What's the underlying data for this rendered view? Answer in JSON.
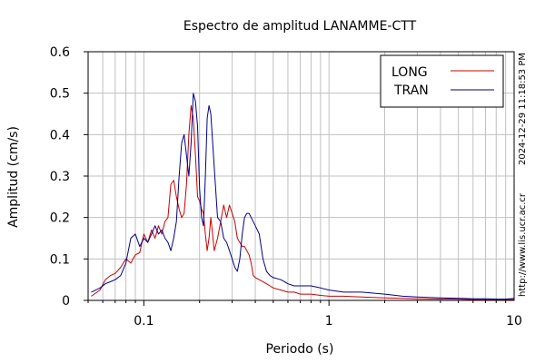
{
  "chart_data": {
    "type": "line",
    "title": "Espectro de amplitud LANAMME-CTT",
    "xlabel": "Periodo (s)",
    "ylabel": "Amplitud (cm/s)",
    "x_scale": "log",
    "xlim": [
      0.05,
      10
    ],
    "ylim": [
      0,
      0.6
    ],
    "x_ticks": [
      0.1,
      1,
      10
    ],
    "x_tick_labels": [
      "0.1",
      "1",
      "10"
    ],
    "y_ticks": [
      0,
      0.1,
      0.2,
      0.3,
      0.4,
      0.5,
      0.6
    ],
    "y_tick_labels": [
      "0",
      "0.1",
      "0.2",
      "0.3",
      "0.4",
      "0.5",
      "0.6"
    ],
    "grid": true,
    "legend_position": "top-right",
    "timestamp": "2024-12-29 11:18:53 PM",
    "source_url": "http://www.lis.ucr.ac.cr",
    "series": [
      {
        "name": "LONG",
        "color": "#cc0000",
        "x": [
          0.052,
          0.058,
          0.062,
          0.066,
          0.07,
          0.075,
          0.08,
          0.085,
          0.09,
          0.095,
          0.1,
          0.105,
          0.11,
          0.115,
          0.12,
          0.125,
          0.13,
          0.135,
          0.14,
          0.145,
          0.15,
          0.155,
          0.16,
          0.165,
          0.17,
          0.175,
          0.18,
          0.185,
          0.19,
          0.195,
          0.2,
          0.205,
          0.21,
          0.215,
          0.22,
          0.225,
          0.23,
          0.24,
          0.25,
          0.26,
          0.27,
          0.28,
          0.29,
          0.3,
          0.31,
          0.32,
          0.33,
          0.34,
          0.35,
          0.36,
          0.37,
          0.38,
          0.39,
          0.4,
          0.42,
          0.44,
          0.46,
          0.48,
          0.5,
          0.55,
          0.6,
          0.65,
          0.7,
          0.8,
          0.9,
          1.0,
          1.2,
          1.5,
          2.0,
          2.5,
          3.0,
          4.0,
          5.0,
          6.0,
          7.0,
          8.0,
          9.0,
          10.0
        ],
        "y": [
          0.01,
          0.025,
          0.05,
          0.06,
          0.065,
          0.08,
          0.1,
          0.09,
          0.11,
          0.115,
          0.16,
          0.14,
          0.17,
          0.15,
          0.18,
          0.16,
          0.19,
          0.2,
          0.28,
          0.29,
          0.25,
          0.22,
          0.2,
          0.21,
          0.28,
          0.4,
          0.47,
          0.44,
          0.35,
          0.25,
          0.24,
          0.22,
          0.21,
          0.16,
          0.12,
          0.15,
          0.2,
          0.12,
          0.15,
          0.19,
          0.23,
          0.2,
          0.23,
          0.21,
          0.19,
          0.15,
          0.14,
          0.13,
          0.13,
          0.12,
          0.11,
          0.09,
          0.06,
          0.055,
          0.05,
          0.045,
          0.04,
          0.035,
          0.03,
          0.025,
          0.02,
          0.02,
          0.015,
          0.015,
          0.012,
          0.01,
          0.01,
          0.008,
          0.006,
          0.005,
          0.004,
          0.003,
          0.003,
          0.002,
          0.002,
          0.002,
          0.002,
          0.002
        ]
      },
      {
        "name": "TRAN",
        "color": "#00008b",
        "x": [
          0.052,
          0.058,
          0.062,
          0.066,
          0.07,
          0.075,
          0.08,
          0.085,
          0.09,
          0.095,
          0.1,
          0.105,
          0.11,
          0.115,
          0.12,
          0.125,
          0.13,
          0.135,
          0.14,
          0.145,
          0.15,
          0.155,
          0.16,
          0.165,
          0.17,
          0.175,
          0.18,
          0.185,
          0.19,
          0.195,
          0.2,
          0.205,
          0.21,
          0.215,
          0.22,
          0.225,
          0.23,
          0.24,
          0.25,
          0.26,
          0.27,
          0.28,
          0.29,
          0.3,
          0.31,
          0.32,
          0.33,
          0.34,
          0.35,
          0.36,
          0.37,
          0.38,
          0.39,
          0.4,
          0.42,
          0.44,
          0.46,
          0.48,
          0.5,
          0.55,
          0.6,
          0.65,
          0.7,
          0.8,
          0.9,
          1.0,
          1.2,
          1.5,
          2.0,
          2.5,
          3.0,
          4.0,
          5.0,
          6.0,
          7.0,
          8.0,
          9.0,
          10.0
        ],
        "y": [
          0.02,
          0.03,
          0.04,
          0.045,
          0.05,
          0.06,
          0.09,
          0.15,
          0.16,
          0.13,
          0.15,
          0.14,
          0.16,
          0.18,
          0.16,
          0.17,
          0.15,
          0.14,
          0.12,
          0.15,
          0.19,
          0.3,
          0.38,
          0.4,
          0.35,
          0.3,
          0.38,
          0.5,
          0.48,
          0.42,
          0.27,
          0.2,
          0.18,
          0.3,
          0.44,
          0.47,
          0.45,
          0.32,
          0.2,
          0.19,
          0.15,
          0.14,
          0.12,
          0.1,
          0.08,
          0.07,
          0.1,
          0.16,
          0.2,
          0.21,
          0.21,
          0.2,
          0.19,
          0.18,
          0.16,
          0.1,
          0.07,
          0.06,
          0.055,
          0.05,
          0.04,
          0.035,
          0.035,
          0.035,
          0.03,
          0.025,
          0.02,
          0.02,
          0.015,
          0.01,
          0.008,
          0.006,
          0.005,
          0.004,
          0.004,
          0.003,
          0.003,
          0.005
        ]
      }
    ]
  }
}
